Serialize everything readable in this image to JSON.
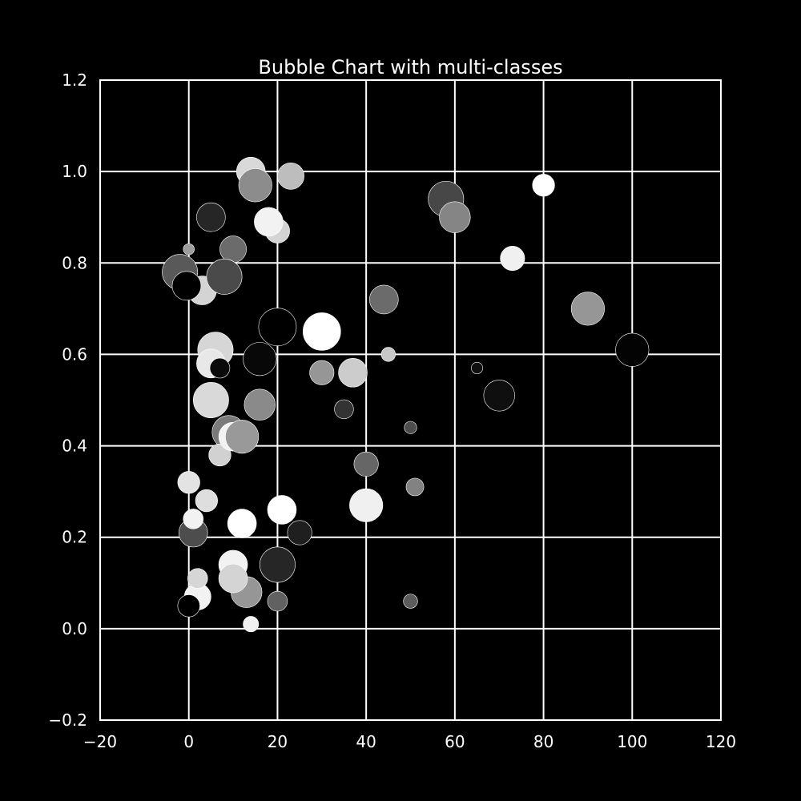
{
  "chart_data": {
    "type": "scatter",
    "title": "Bubble Chart with multi-classes",
    "xlabel": "",
    "ylabel": "",
    "xlim": [
      -20,
      120
    ],
    "ylim": [
      -0.2,
      1.2
    ],
    "grid": true,
    "x_ticks": [
      -20,
      0,
      20,
      40,
      60,
      80,
      100,
      120
    ],
    "x_tick_labels": [
      "−20",
      "0",
      "20",
      "40",
      "60",
      "80",
      "100",
      "120"
    ],
    "y_ticks": [
      -0.2,
      0.0,
      0.2,
      0.4,
      0.6,
      0.8,
      1.0,
      1.2
    ],
    "y_tick_labels": [
      "−0.2",
      "0.0",
      "0.2",
      "0.4",
      "0.6",
      "0.8",
      "1.0",
      "1.2"
    ],
    "colors": {
      "background": "#000000",
      "axes_face": "#000000",
      "grid": "#ffffff",
      "text": "#ffffff",
      "bubble_edge": "#ffffff"
    },
    "bubble_size_units": "relative size (x-axis data units)",
    "points": [
      {
        "x": -2,
        "y": 0.78,
        "size": 8.0,
        "color": "#595959"
      },
      {
        "x": 0,
        "y": 0.83,
        "size": 2.5,
        "color": "#9e9e9e"
      },
      {
        "x": 3,
        "y": 0.74,
        "size": 6.5,
        "color": "#d4d4d4"
      },
      {
        "x": 10,
        "y": 0.83,
        "size": 6.0,
        "color": "#6b6b6b"
      },
      {
        "x": -0.5,
        "y": 0.75,
        "size": 6.5,
        "color": "#000000"
      },
      {
        "x": 8,
        "y": 0.77,
        "size": 8.0,
        "color": "#4a4a4a"
      },
      {
        "x": 14,
        "y": 1.0,
        "size": 6.5,
        "color": "#d9d9d9"
      },
      {
        "x": 15,
        "y": 0.97,
        "size": 7.5,
        "color": "#8c8c8c"
      },
      {
        "x": 23,
        "y": 0.99,
        "size": 6.0,
        "color": "#bdbdbd"
      },
      {
        "x": 20,
        "y": 0.87,
        "size": 5.5,
        "color": "#d4d4d4"
      },
      {
        "x": 5,
        "y": 0.9,
        "size": 6.5,
        "color": "#262626"
      },
      {
        "x": 18,
        "y": 0.89,
        "size": 6.5,
        "color": "#f2f2f2"
      },
      {
        "x": 58,
        "y": 0.94,
        "size": 8.0,
        "color": "#474747"
      },
      {
        "x": 60,
        "y": 0.9,
        "size": 7.0,
        "color": "#858585"
      },
      {
        "x": 80,
        "y": 0.97,
        "size": 5.0,
        "color": "#ffffff"
      },
      {
        "x": 73,
        "y": 0.81,
        "size": 5.5,
        "color": "#f0f0f0"
      },
      {
        "x": 90,
        "y": 0.7,
        "size": 7.5,
        "color": "#969696"
      },
      {
        "x": 100,
        "y": 0.61,
        "size": 7.5,
        "color": "#030303"
      },
      {
        "x": 44,
        "y": 0.72,
        "size": 6.5,
        "color": "#6b6b6b"
      },
      {
        "x": 20,
        "y": 0.66,
        "size": 8.5,
        "color": "#000000"
      },
      {
        "x": 30,
        "y": 0.65,
        "size": 8.5,
        "color": "#ffffff"
      },
      {
        "x": 6,
        "y": 0.61,
        "size": 8.0,
        "color": "#d6d6d6"
      },
      {
        "x": 5,
        "y": 0.58,
        "size": 6.5,
        "color": "#e8e8e8"
      },
      {
        "x": 16,
        "y": 0.59,
        "size": 7.5,
        "color": "#080808"
      },
      {
        "x": 37,
        "y": 0.56,
        "size": 6.5,
        "color": "#cccccc"
      },
      {
        "x": 30,
        "y": 0.56,
        "size": 5.5,
        "color": "#969696"
      },
      {
        "x": 45,
        "y": 0.6,
        "size": 3.2,
        "color": "#c7c7c7"
      },
      {
        "x": 7,
        "y": 0.57,
        "size": 4.5,
        "color": "#0a0a0a"
      },
      {
        "x": 65,
        "y": 0.57,
        "size": 2.6,
        "color": "#0f0f0f"
      },
      {
        "x": 70,
        "y": 0.51,
        "size": 7.0,
        "color": "#0f0f0f"
      },
      {
        "x": 5,
        "y": 0.5,
        "size": 8.0,
        "color": "#d9d9d9"
      },
      {
        "x": 16,
        "y": 0.49,
        "size": 7.0,
        "color": "#8a8a8a"
      },
      {
        "x": 35,
        "y": 0.48,
        "size": 4.3,
        "color": "#333333"
      },
      {
        "x": 50,
        "y": 0.44,
        "size": 2.8,
        "color": "#4d4d4d"
      },
      {
        "x": 9,
        "y": 0.43,
        "size": 7.5,
        "color": "#7a7a7a"
      },
      {
        "x": 7,
        "y": 0.38,
        "size": 5.0,
        "color": "#d1d1d1"
      },
      {
        "x": 10,
        "y": 0.42,
        "size": 6.5,
        "color": "#f2f2f2"
      },
      {
        "x": 12,
        "y": 0.42,
        "size": 7.5,
        "color": "#999999"
      },
      {
        "x": 40,
        "y": 0.36,
        "size": 5.5,
        "color": "#666666"
      },
      {
        "x": 51,
        "y": 0.31,
        "size": 4.0,
        "color": "#828282"
      },
      {
        "x": 0,
        "y": 0.32,
        "size": 5.0,
        "color": "#e3e3e3"
      },
      {
        "x": 4,
        "y": 0.28,
        "size": 5.0,
        "color": "#dedede"
      },
      {
        "x": 40,
        "y": 0.27,
        "size": 7.5,
        "color": "#f0f0f0"
      },
      {
        "x": 1,
        "y": 0.21,
        "size": 6.5,
        "color": "#4d4d4d"
      },
      {
        "x": 25,
        "y": 0.21,
        "size": 5.5,
        "color": "#1f1f1f"
      },
      {
        "x": 21,
        "y": 0.26,
        "size": 6.5,
        "color": "#ffffff"
      },
      {
        "x": 1,
        "y": 0.24,
        "size": 4.5,
        "color": "#f2f2f2"
      },
      {
        "x": 12,
        "y": 0.23,
        "size": 6.5,
        "color": "#ffffff"
      },
      {
        "x": 20,
        "y": 0.14,
        "size": 8.0,
        "color": "#262626"
      },
      {
        "x": 10,
        "y": 0.14,
        "size": 6.5,
        "color": "#f2f2f2"
      },
      {
        "x": 13,
        "y": 0.08,
        "size": 7.0,
        "color": "#969696"
      },
      {
        "x": 20,
        "y": 0.06,
        "size": 4.5,
        "color": "#616161"
      },
      {
        "x": 50,
        "y": 0.06,
        "size": 3.2,
        "color": "#5c5c5c"
      },
      {
        "x": 2,
        "y": 0.07,
        "size": 6.0,
        "color": "#f2f2f2"
      },
      {
        "x": 10,
        "y": 0.11,
        "size": 6.5,
        "color": "#d4d4d4"
      },
      {
        "x": 2,
        "y": 0.11,
        "size": 4.5,
        "color": "#d6d6d6"
      },
      {
        "x": 14,
        "y": 0.01,
        "size": 3.5,
        "color": "#f2f2f2"
      },
      {
        "x": 0,
        "y": 0.05,
        "size": 5.0,
        "color": "#000000"
      }
    ]
  }
}
